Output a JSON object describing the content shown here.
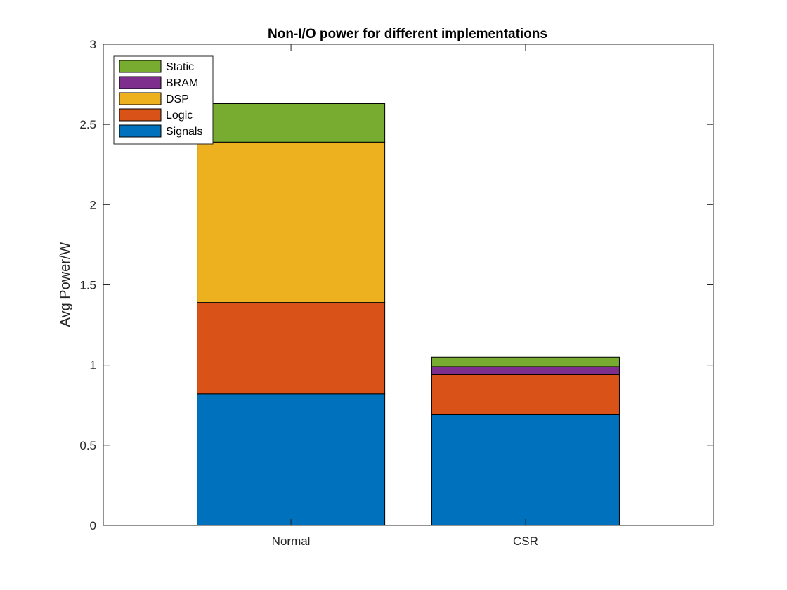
{
  "chart_data": {
    "type": "bar",
    "stacked": true,
    "title": "Non-I/O power for different implementations",
    "xlabel": "",
    "ylabel": "Avg Power/W",
    "categories": [
      "Normal",
      "CSR"
    ],
    "ylim": [
      0,
      3
    ],
    "yticks": [
      0,
      0.5,
      1,
      1.5,
      2,
      2.5,
      3
    ],
    "ytick_labels": [
      "0",
      "0.5",
      "1",
      "1.5",
      "2",
      "2.5",
      "3"
    ],
    "legend_position": "top-left",
    "grid": false,
    "series": [
      {
        "name": "Signals",
        "color": "#0072BD",
        "values": [
          0.82,
          0.69
        ]
      },
      {
        "name": "Logic",
        "color": "#D95319",
        "values": [
          0.57,
          0.25
        ]
      },
      {
        "name": "DSP",
        "color": "#EDB120",
        "values": [
          1.0,
          0.0
        ]
      },
      {
        "name": "BRAM",
        "color": "#7E2F8E",
        "values": [
          0.0,
          0.05
        ]
      },
      {
        "name": "Static",
        "color": "#77AC30",
        "values": [
          0.24,
          0.06
        ]
      }
    ]
  }
}
